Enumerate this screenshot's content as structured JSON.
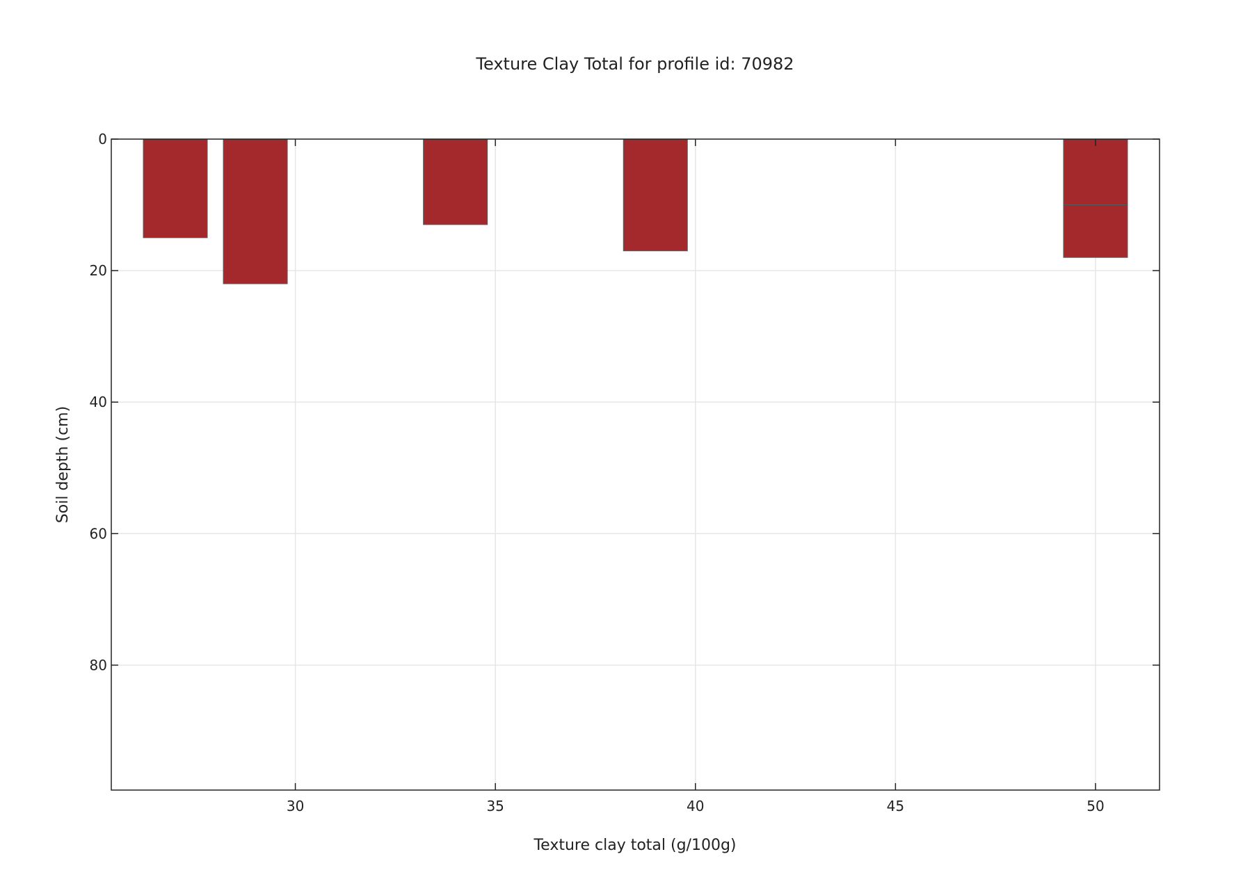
{
  "chart_data": {
    "type": "bar",
    "orientation": "horizontal-depth",
    "title": "Texture Clay Total for profile id: 70982",
    "xlabel": "Texture clay total (g/100g)",
    "ylabel": "Soil depth (cm)",
    "xlim": [
      25.4,
      51.6
    ],
    "ylim": [
      0,
      99
    ],
    "y_inverted": true,
    "x_ticks": [
      30,
      35,
      40,
      45,
      50
    ],
    "x_tick_labels": [
      "30",
      "35",
      "40",
      "45",
      "50"
    ],
    "y_ticks": [
      0,
      20,
      40,
      60,
      80
    ],
    "y_tick_labels": [
      "0",
      "20",
      "40",
      "60",
      "80"
    ],
    "grid": true,
    "bar_color": "#a4292d",
    "bars": [
      {
        "value": 27.0,
        "top": 0,
        "bottom": 15
      },
      {
        "value": 29.0,
        "top": 0,
        "bottom": 22
      },
      {
        "value": 34.0,
        "top": 0,
        "bottom": 13
      },
      {
        "value": 39.0,
        "top": 0,
        "bottom": 17
      },
      {
        "value": 50.0,
        "top": 0,
        "bottom": 10
      },
      {
        "value": 50.0,
        "top": 10,
        "bottom": 18
      }
    ]
  }
}
